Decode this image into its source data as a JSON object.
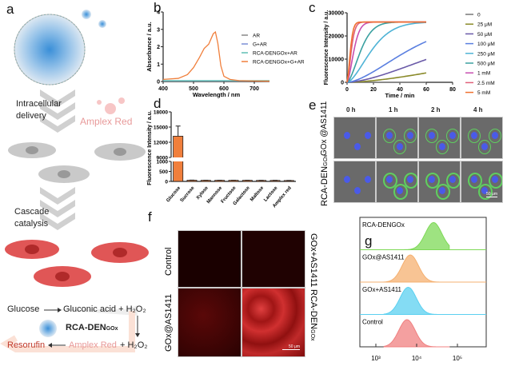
{
  "panels": {
    "a": "a",
    "b": "b",
    "c": "c",
    "d": "d",
    "e": "e",
    "f": "f",
    "g": "g"
  },
  "schematic": {
    "delivery": "Intracellular delivery",
    "amplex": "Amplex Red",
    "cascade": "Cascade catalysis",
    "glucose": "Glucose",
    "gluconic": "Gluconic acid + H₂O₂",
    "nano_label": "RCA-DEN",
    "nano_sub": "GOx",
    "resorufin": "Resorufin",
    "amplex2": "Amplex Red",
    "h2o2": "+ H₂O₂"
  },
  "panel_e": {
    "cols": [
      "0 h",
      "1 h",
      "2 h",
      "4 h"
    ],
    "row1": "GOx @AS1411",
    "row2": "RCA-DEN",
    "row2_sub": "GOx",
    "scale": "50 μm"
  },
  "panel_f": {
    "left_top": "Control",
    "left_bottom": "GOx@AS1411",
    "right_top": "GOx+AS1411",
    "right_bottom": "RCA-DEN",
    "right_bottom_sub": "GOx",
    "scale": "50 μm"
  },
  "colors": {
    "orange": "#f07f3c",
    "red": "#c0392b",
    "pink": "#e89a9a"
  },
  "chart_data": [
    {
      "type": "line",
      "id": "b",
      "xlabel": "Wavelength / nm",
      "ylabel": "Absorbance / a.u.",
      "xlim": [
        400,
        750
      ],
      "ylim": [
        0,
        4
      ],
      "xticks": [
        400,
        500,
        600,
        700
      ],
      "yticks": [
        0,
        1,
        2,
        3,
        4
      ],
      "series": [
        {
          "name": "AR",
          "color": "#888888",
          "x": [
            400,
            750
          ],
          "y": [
            0.03,
            0.03
          ]
        },
        {
          "name": "G+AR",
          "color": "#7b8fd6",
          "x": [
            400,
            750
          ],
          "y": [
            0.04,
            0.04
          ]
        },
        {
          "name": "RCA-DENGOx+AR",
          "color": "#5fbfb4",
          "x": [
            400,
            750
          ],
          "y": [
            0.05,
            0.05
          ]
        },
        {
          "name": "RCA-DENGOx+G+AR",
          "color": "#f07f3c",
          "x": [
            400,
            450,
            480,
            500,
            520,
            535,
            550,
            565,
            572,
            580,
            590,
            600,
            620,
            650,
            700,
            750
          ],
          "y": [
            0.12,
            0.18,
            0.4,
            0.8,
            1.4,
            1.9,
            2.15,
            2.75,
            2.85,
            2.2,
            0.9,
            0.3,
            0.12,
            0.05,
            0.03,
            0.02
          ]
        }
      ]
    },
    {
      "type": "line",
      "id": "c",
      "xlabel": "Time / min",
      "ylabel": "Fluorescence Intensity / a.u.",
      "xlim": [
        0,
        80
      ],
      "ylim": [
        0,
        30000
      ],
      "xticks": [
        0,
        20,
        40,
        60,
        80
      ],
      "yticks": [
        0,
        10000,
        20000,
        30000
      ],
      "series": [
        {
          "name": "0",
          "color": "#777777",
          "rate": 0.0003,
          "max": 400
        },
        {
          "name": "25 μM",
          "color": "#8a8a2a",
          "rate": 0.0055,
          "max": 26000
        },
        {
          "name": "50 μM",
          "color": "#6a5aa8",
          "rate": 0.0105,
          "max": 26000
        },
        {
          "name": "100 μM",
          "color": "#5a7fe0",
          "rate": 0.018,
          "max": 26000
        },
        {
          "name": "250 μM",
          "color": "#4fb3d6",
          "rate": 0.045,
          "max": 26000
        },
        {
          "name": "500 μM",
          "color": "#3aa0a0",
          "rate": 0.08,
          "max": 26000
        },
        {
          "name": "1 mM",
          "color": "#c84fb0",
          "rate": 0.16,
          "max": 26000
        },
        {
          "name": "2.5 mM",
          "color": "#e0607a",
          "rate": 0.26,
          "max": 26000
        },
        {
          "name": "5 mM",
          "color": "#f07030",
          "rate": 0.33,
          "max": 26000
        }
      ]
    },
    {
      "type": "bar",
      "id": "d",
      "ylabel": "Fluorescence Intensity / a.u.",
      "categories": [
        "Glucose",
        "Sucrose",
        "Xylose",
        "Mannose",
        "Fructose",
        "Galactose",
        "Maltose",
        "Lactose",
        "Amplex red"
      ],
      "values": [
        13200,
        60,
        55,
        55,
        55,
        55,
        50,
        50,
        45
      ],
      "errors": [
        2000,
        5,
        5,
        5,
        5,
        5,
        5,
        5,
        5
      ],
      "yticks_low": [
        0,
        500,
        1000
      ],
      "yticks_high": [
        9000,
        12000,
        15000,
        18000
      ],
      "ybreak": [
        1000,
        9000
      ],
      "color": "#f07f3c"
    },
    {
      "type": "area",
      "id": "g",
      "xscale": "log",
      "xticks": [
        "10³",
        "10⁴",
        "10⁵"
      ],
      "series": [
        {
          "name": "RCA-DENGOx",
          "color": "#7ed957",
          "peak": 26000
        },
        {
          "name": "GOx@AS1411",
          "color": "#f5b070",
          "peak": 7000
        },
        {
          "name": "GOx+AS1411",
          "color": "#5bd0f0",
          "peak": 6200
        },
        {
          "name": "Control",
          "color": "#f08080",
          "peak": 5800
        }
      ]
    }
  ]
}
